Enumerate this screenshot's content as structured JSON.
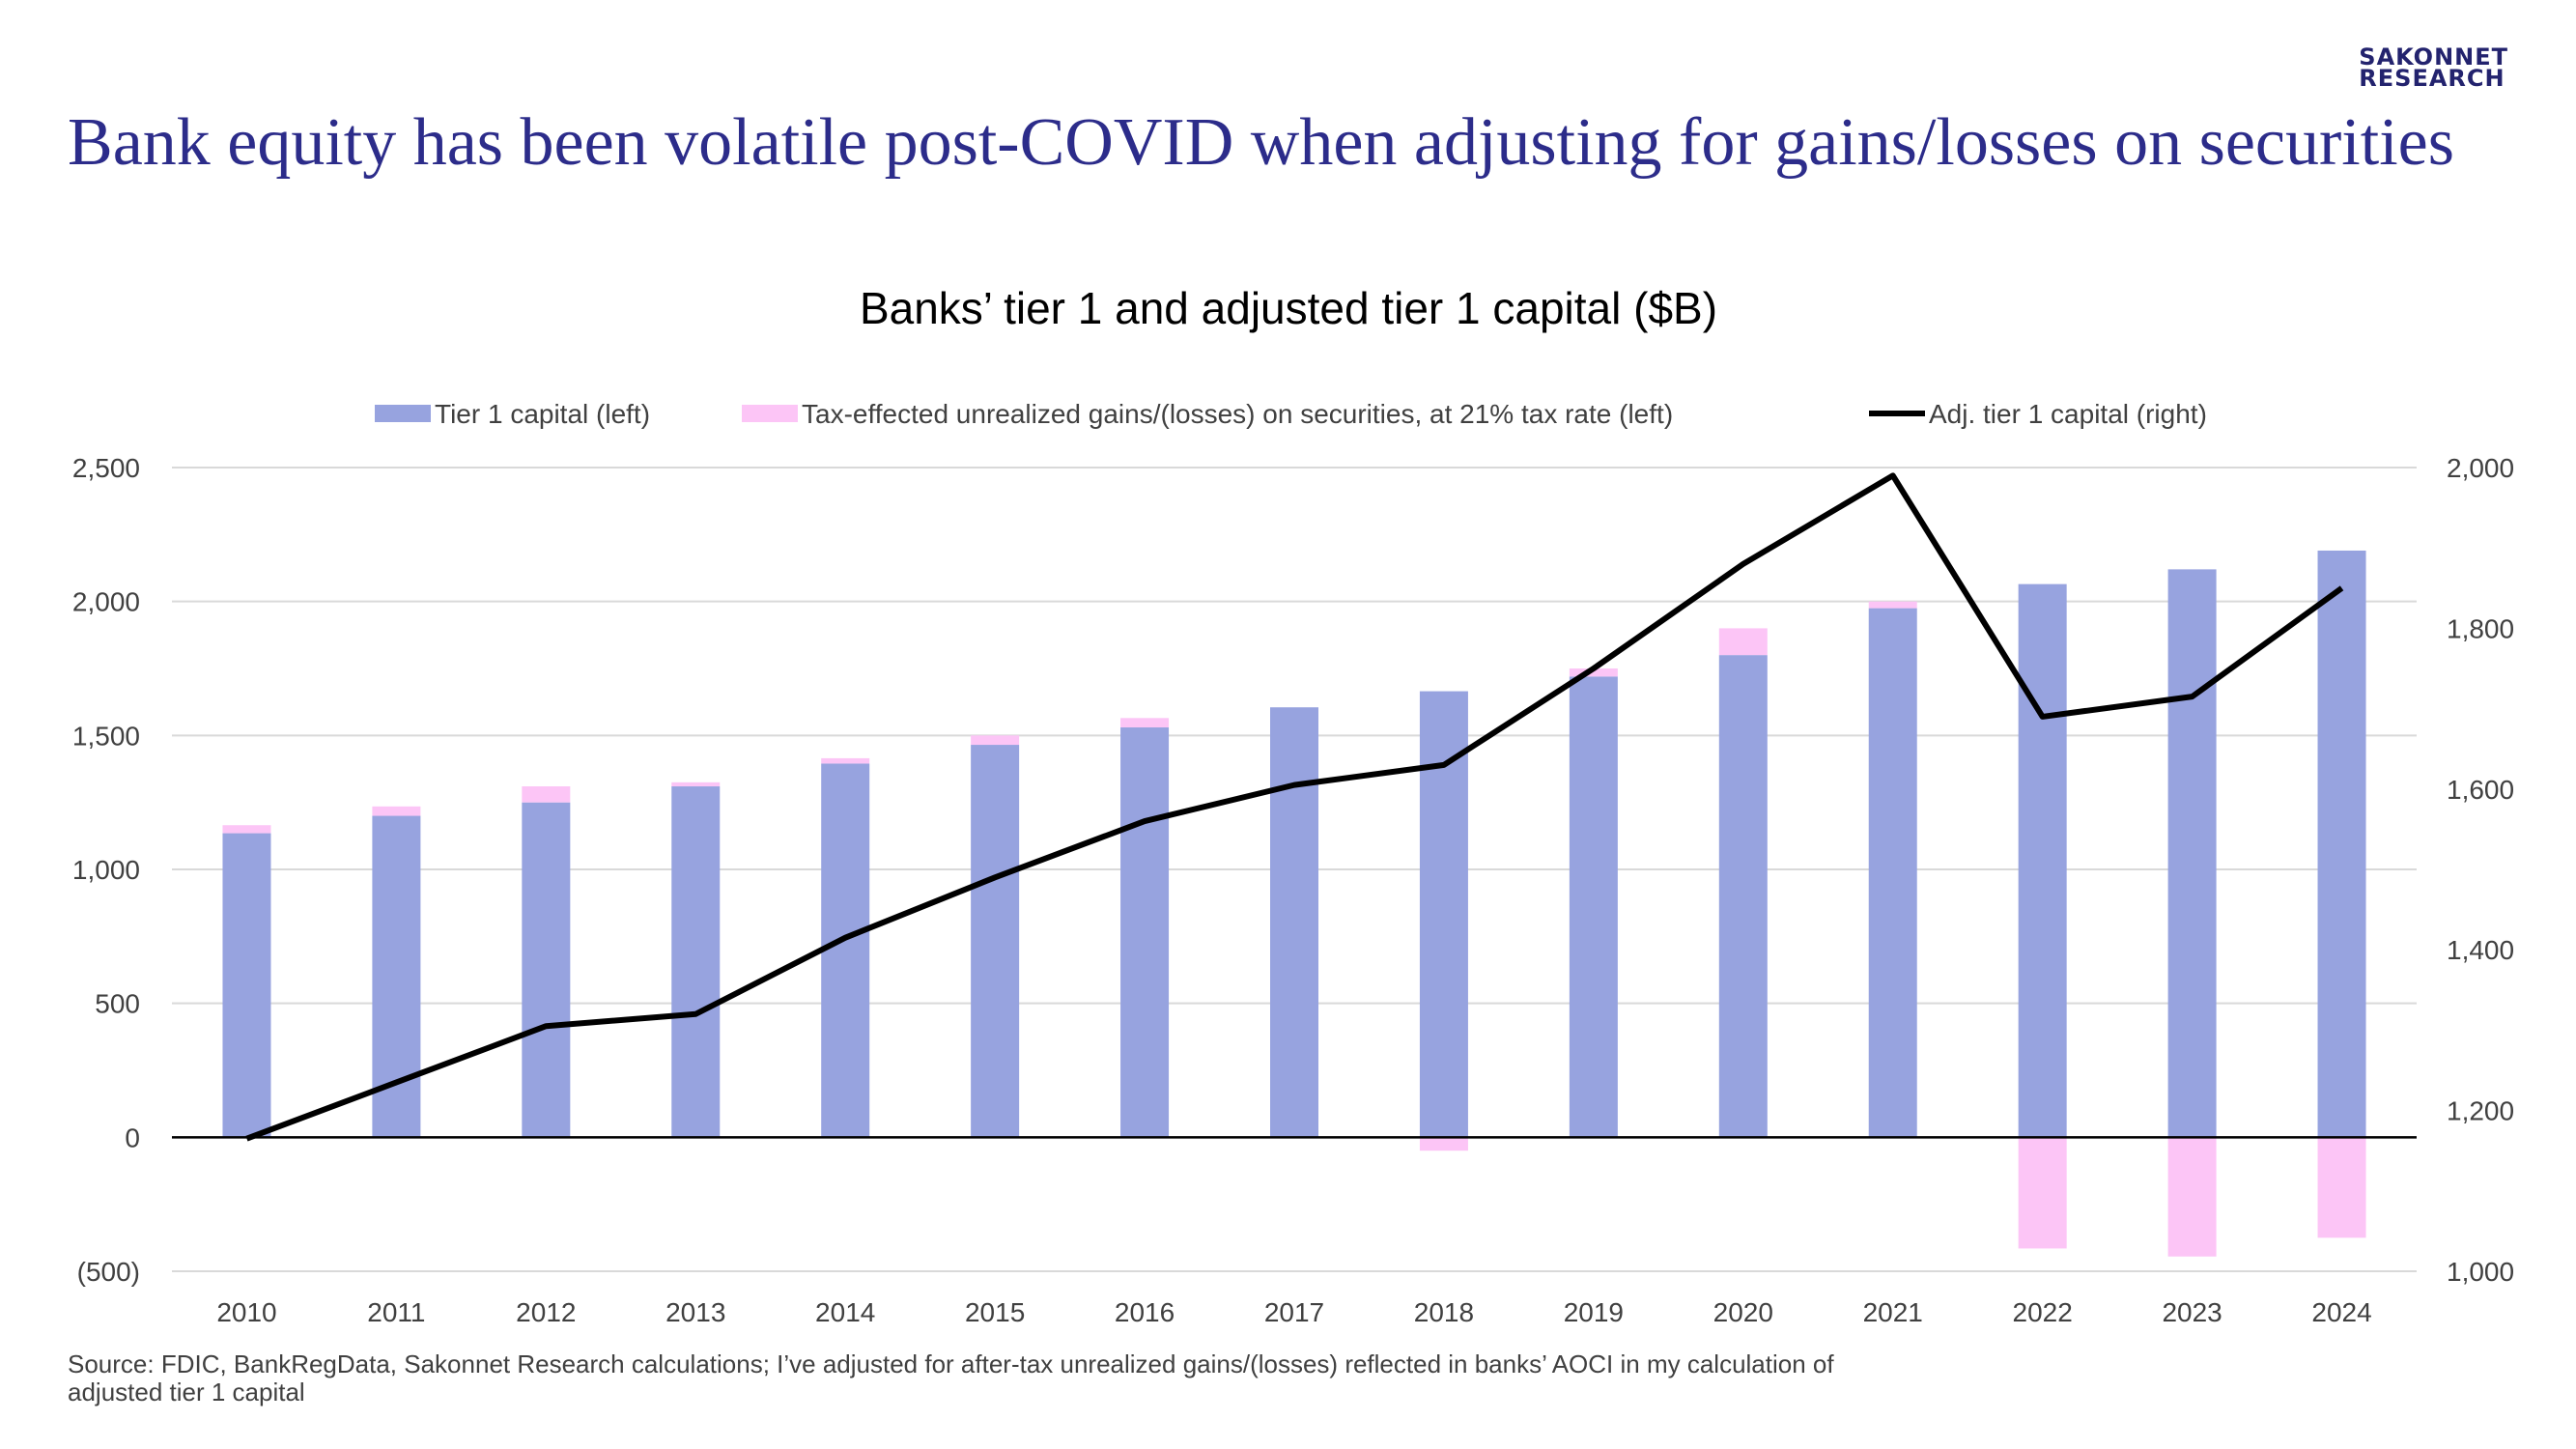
{
  "header": {
    "brand_line1": "SAKONNET",
    "brand_line2": "RESEARCH",
    "headline": "Bank equity has been volatile post-COVID when adjusting for gains/losses on securities"
  },
  "footer": {
    "source": "Source: FDIC, BankRegData, Sakonnet Research calculations; I’ve adjusted for after-tax unrealized gains/(losses) reflected in banks’ AOCI in my calculation of adjusted tier 1 capital"
  },
  "colors": {
    "tier1": "#97a3df",
    "unrealized": "#fcc5f6",
    "adjusted_line": "#000000",
    "gridline": "#d9d9d9",
    "negative_tick": "#c00000"
  },
  "chart_data": {
    "type": "bar",
    "title": "Banks’ tier 1 and adjusted tier 1 capital ($B)",
    "categories": [
      "2010",
      "2011",
      "2012",
      "2013",
      "2014",
      "2015",
      "2016",
      "2017",
      "2018",
      "2019",
      "2020",
      "2021",
      "2022",
      "2023",
      "2024"
    ],
    "series": [
      {
        "name": "Tier 1 capital (left)",
        "kind": "bar",
        "axis": "left",
        "values": [
          1135,
          1200,
          1250,
          1310,
          1395,
          1465,
          1530,
          1605,
          1665,
          1720,
          1800,
          1975,
          2065,
          2120,
          2190
        ]
      },
      {
        "name": "Tax-effected unrealized gains/(losses) on securities, at 21% tax rate (left)",
        "kind": "stacked-bar",
        "axis": "left",
        "values": [
          30,
          35,
          60,
          15,
          20,
          35,
          35,
          0,
          -50,
          30,
          100,
          25,
          -415,
          -445,
          -375
        ]
      },
      {
        "name": "Adj. tier 1 capital (right)",
        "kind": "line",
        "axis": "right",
        "values": [
          1165,
          1235,
          1305,
          1320,
          1415,
          1490,
          1560,
          1605,
          1630,
          1750,
          1880,
          1990,
          1690,
          1715,
          1850
        ]
      }
    ],
    "y_left": {
      "range": [
        -500,
        2500
      ],
      "ticks": [
        -500,
        0,
        500,
        1000,
        1500,
        2000,
        2500
      ],
      "tick_labels": [
        "(500)",
        "0",
        "500",
        "1,000",
        "1,500",
        "2,000",
        "2,500"
      ]
    },
    "y_right": {
      "range": [
        1000,
        2000
      ],
      "ticks": [
        1000,
        1200,
        1400,
        1600,
        1800,
        2000
      ],
      "tick_labels": [
        "1,000",
        "1,200",
        "1,400",
        "1,600",
        "1,800",
        "2,000"
      ]
    },
    "grid": true,
    "legend_position": "top"
  }
}
